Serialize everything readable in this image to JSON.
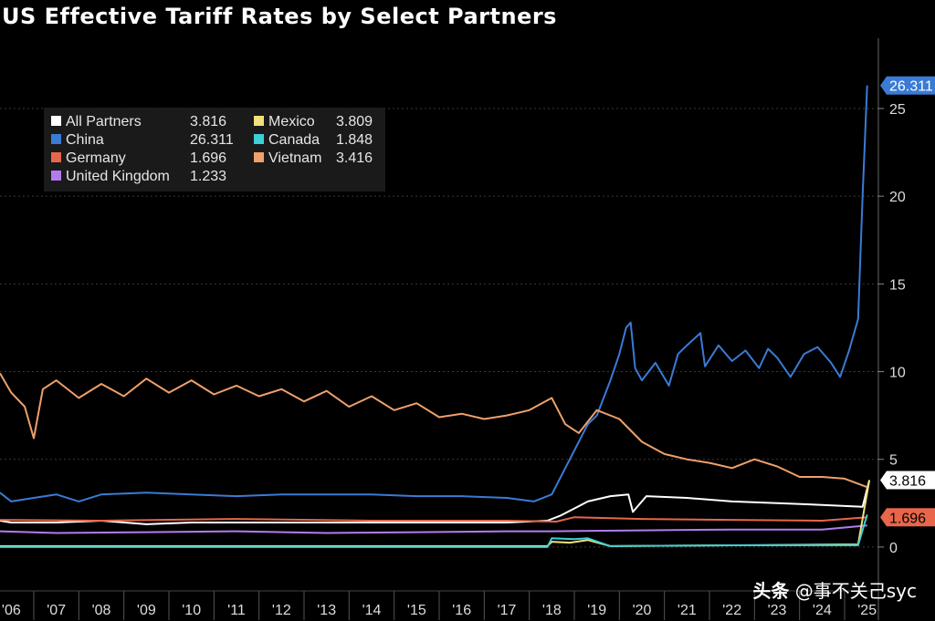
{
  "chart_data": {
    "type": "line",
    "title": "US Effective Tariff Rates by Select Partners",
    "xlabel": "",
    "ylabel": "",
    "x_ticks": [
      "'06",
      "'07",
      "'08",
      "'09",
      "'10",
      "'11",
      "'12",
      "'13",
      "'14",
      "'15",
      "'16",
      "'17",
      "'18",
      "'19",
      "'20",
      "'21",
      "'22",
      "'23",
      "'24",
      "'25"
    ],
    "x_range": [
      2005.75,
      2025.25
    ],
    "ylim": [
      -2.5,
      29
    ],
    "y_ticks": [
      0,
      5,
      10,
      15,
      20,
      25
    ],
    "y_axis_side": "right",
    "grid": "horizontal dotted",
    "legend": "top-left",
    "series": [
      {
        "name": "All Partners",
        "last": "3.816",
        "color": "#ffffff",
        "points": [
          [
            2005.75,
            1.5
          ],
          [
            2006,
            1.4
          ],
          [
            2007,
            1.4
          ],
          [
            2008,
            1.5
          ],
          [
            2009,
            1.3
          ],
          [
            2010,
            1.4
          ],
          [
            2011,
            1.4
          ],
          [
            2012,
            1.4
          ],
          [
            2013,
            1.4
          ],
          [
            2014,
            1.4
          ],
          [
            2015,
            1.4
          ],
          [
            2016,
            1.4
          ],
          [
            2017,
            1.4
          ],
          [
            2017.9,
            1.5
          ],
          [
            2018.2,
            1.8
          ],
          [
            2018.5,
            2.2
          ],
          [
            2018.8,
            2.6
          ],
          [
            2019.3,
            2.9
          ],
          [
            2019.7,
            3.0
          ],
          [
            2019.8,
            2.0
          ],
          [
            2020.1,
            2.9
          ],
          [
            2021,
            2.8
          ],
          [
            2022,
            2.6
          ],
          [
            2023,
            2.5
          ],
          [
            2024,
            2.4
          ],
          [
            2024.9,
            2.3
          ],
          [
            2025.05,
            3.816
          ]
        ]
      },
      {
        "name": "China",
        "last": "26.311",
        "color": "#3a7bd5",
        "points": [
          [
            2005.75,
            3.1
          ],
          [
            2006,
            2.6
          ],
          [
            2006.5,
            2.8
          ],
          [
            2007,
            3.0
          ],
          [
            2007.5,
            2.6
          ],
          [
            2008,
            3.0
          ],
          [
            2009,
            3.1
          ],
          [
            2010,
            3.0
          ],
          [
            2011,
            2.9
          ],
          [
            2012,
            3.0
          ],
          [
            2013,
            3.0
          ],
          [
            2014,
            3.0
          ],
          [
            2015,
            2.9
          ],
          [
            2016,
            2.9
          ],
          [
            2017,
            2.8
          ],
          [
            2017.6,
            2.6
          ],
          [
            2018,
            3.0
          ],
          [
            2018.3,
            4.5
          ],
          [
            2018.6,
            6.0
          ],
          [
            2018.8,
            7.0
          ],
          [
            2019.0,
            7.5
          ],
          [
            2019.3,
            9.5
          ],
          [
            2019.5,
            11.0
          ],
          [
            2019.65,
            12.5
          ],
          [
            2019.75,
            12.8
          ],
          [
            2019.85,
            10.2
          ],
          [
            2020,
            9.5
          ],
          [
            2020.3,
            10.5
          ],
          [
            2020.6,
            9.2
          ],
          [
            2020.8,
            11.0
          ],
          [
            2021,
            11.5
          ],
          [
            2021.3,
            12.2
          ],
          [
            2021.4,
            10.3
          ],
          [
            2021.7,
            11.5
          ],
          [
            2022,
            10.6
          ],
          [
            2022.3,
            11.2
          ],
          [
            2022.6,
            10.2
          ],
          [
            2022.8,
            11.3
          ],
          [
            2023,
            10.8
          ],
          [
            2023.3,
            9.7
          ],
          [
            2023.6,
            11.0
          ],
          [
            2023.9,
            11.4
          ],
          [
            2024.2,
            10.5
          ],
          [
            2024.4,
            9.7
          ],
          [
            2024.6,
            11.2
          ],
          [
            2024.8,
            13.0
          ],
          [
            2024.9,
            20.0
          ],
          [
            2025.0,
            26.311
          ]
        ]
      },
      {
        "name": "Germany",
        "last": "1.696",
        "color": "#e8664a",
        "points": [
          [
            2005.75,
            1.55
          ],
          [
            2008,
            1.5
          ],
          [
            2011,
            1.6
          ],
          [
            2014,
            1.5
          ],
          [
            2017,
            1.5
          ],
          [
            2018.1,
            1.45
          ],
          [
            2018.5,
            1.7
          ],
          [
            2020,
            1.6
          ],
          [
            2022,
            1.55
          ],
          [
            2024,
            1.5
          ],
          [
            2025.0,
            1.696
          ]
        ]
      },
      {
        "name": "United Kingdom",
        "last": "1.233",
        "color": "#b27cf0",
        "points": [
          [
            2005.75,
            0.9
          ],
          [
            2007,
            0.8
          ],
          [
            2009,
            0.85
          ],
          [
            2011,
            0.9
          ],
          [
            2013,
            0.8
          ],
          [
            2015,
            0.85
          ],
          [
            2017,
            0.9
          ],
          [
            2018,
            0.9
          ],
          [
            2020,
            0.95
          ],
          [
            2022,
            1.0
          ],
          [
            2024,
            1.0
          ],
          [
            2025.0,
            1.233
          ]
        ]
      },
      {
        "name": "Mexico",
        "last": "3.809",
        "color": "#f3e07d",
        "points": [
          [
            2005.75,
            0.05
          ],
          [
            2010,
            0.05
          ],
          [
            2015,
            0.05
          ],
          [
            2017.9,
            0.05
          ],
          [
            2018.0,
            0.3
          ],
          [
            2018.4,
            0.25
          ],
          [
            2018.8,
            0.4
          ],
          [
            2019.3,
            0.05
          ],
          [
            2022,
            0.1
          ],
          [
            2024.8,
            0.15
          ],
          [
            2025.05,
            3.809
          ]
        ]
      },
      {
        "name": "Canada",
        "last": "1.848",
        "color": "#3ccfd7",
        "points": [
          [
            2005.75,
            0.0
          ],
          [
            2010,
            0.0
          ],
          [
            2015,
            0.0
          ],
          [
            2017.9,
            0.0
          ],
          [
            2018.0,
            0.5
          ],
          [
            2018.5,
            0.45
          ],
          [
            2018.8,
            0.5
          ],
          [
            2019.3,
            0.05
          ],
          [
            2022,
            0.1
          ],
          [
            2024.8,
            0.1
          ],
          [
            2025.0,
            1.848
          ]
        ]
      },
      {
        "name": "Vietnam",
        "last": "3.416",
        "color": "#f0a06a",
        "points": [
          [
            2005.75,
            9.9
          ],
          [
            2006,
            8.8
          ],
          [
            2006.3,
            8.0
          ],
          [
            2006.5,
            6.2
          ],
          [
            2006.7,
            9.0
          ],
          [
            2007,
            9.5
          ],
          [
            2007.5,
            8.5
          ],
          [
            2008,
            9.3
          ],
          [
            2008.5,
            8.6
          ],
          [
            2009,
            9.6
          ],
          [
            2009.5,
            8.8
          ],
          [
            2010,
            9.5
          ],
          [
            2010.5,
            8.7
          ],
          [
            2011,
            9.2
          ],
          [
            2011.5,
            8.6
          ],
          [
            2012,
            9.0
          ],
          [
            2012.5,
            8.3
          ],
          [
            2013,
            8.9
          ],
          [
            2013.5,
            8.0
          ],
          [
            2014,
            8.6
          ],
          [
            2014.5,
            7.8
          ],
          [
            2015,
            8.2
          ],
          [
            2015.5,
            7.4
          ],
          [
            2016,
            7.6
          ],
          [
            2016.5,
            7.3
          ],
          [
            2017,
            7.5
          ],
          [
            2017.5,
            7.8
          ],
          [
            2018,
            8.5
          ],
          [
            2018.3,
            7.0
          ],
          [
            2018.6,
            6.5
          ],
          [
            2019.0,
            7.8
          ],
          [
            2019.5,
            7.3
          ],
          [
            2020,
            6.0
          ],
          [
            2020.5,
            5.3
          ],
          [
            2021,
            5.0
          ],
          [
            2021.5,
            4.8
          ],
          [
            2022,
            4.5
          ],
          [
            2022.5,
            5.0
          ],
          [
            2023,
            4.6
          ],
          [
            2023.5,
            4.0
          ],
          [
            2024,
            4.0
          ],
          [
            2024.5,
            3.9
          ],
          [
            2025.0,
            3.416
          ]
        ]
      }
    ]
  },
  "watermark": {
    "brand": "头条",
    "handle": "@事不关己syc"
  },
  "colors": {
    "background": "#000000",
    "grid": "#3a3a3a"
  }
}
